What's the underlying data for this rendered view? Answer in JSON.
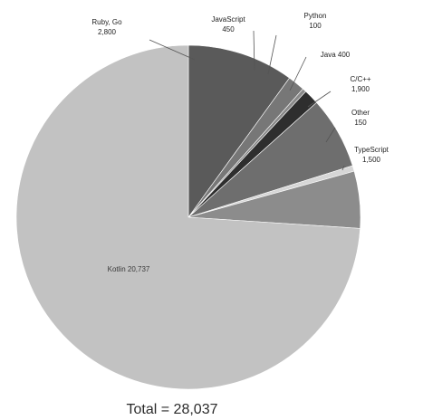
{
  "chart_data": {
    "type": "pie",
    "title": "",
    "start_angle_deg": 0,
    "direction": "clockwise",
    "slices": [
      {
        "label": "Ruby, Go 2,800",
        "value": 2800,
        "color": "#5a5a5a"
      },
      {
        "label": "JavaScript 450",
        "value": 450,
        "color": "#777777"
      },
      {
        "label": "Python 100",
        "value": 100,
        "color": "#8a8a8a"
      },
      {
        "label": "Java 400",
        "value": 400,
        "color": "#2e2e2e"
      },
      {
        "label": "C/C++ 1,900",
        "value": 1900,
        "color": "#6e6e6e"
      },
      {
        "label": "Other 150",
        "value": 150,
        "color": "#d6d6d6"
      },
      {
        "label": "TypeScript 1,500",
        "value": 1500,
        "color": "#8c8c8c"
      },
      {
        "label": "Kotlin 20,737",
        "value": 20737,
        "color": "#c2c2c2"
      }
    ],
    "total_label": "Total = 28,037"
  }
}
